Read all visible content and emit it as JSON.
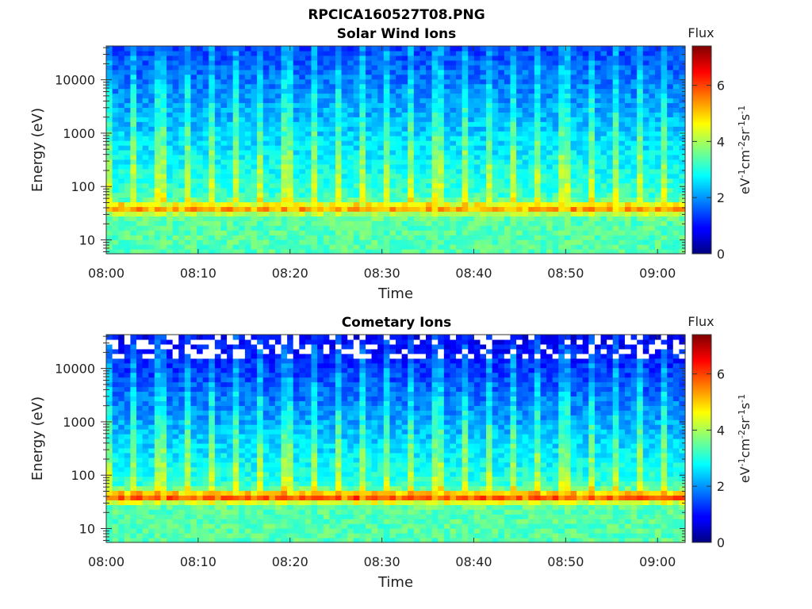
{
  "figure_title": "RPCICA160527T08.PNG",
  "colorbar": {
    "title": "Flux",
    "label": "eV-1cm-2sr-1s-1",
    "label_parts": [
      {
        "t": "eV",
        "sup": false
      },
      {
        "t": "-1",
        "sup": true
      },
      {
        "t": "cm",
        "sup": false
      },
      {
        "t": "-2",
        "sup": true
      },
      {
        "t": "sr",
        "sup": false
      },
      {
        "t": "-1",
        "sup": true
      },
      {
        "t": "s",
        "sup": false
      },
      {
        "t": "-1",
        "sup": true
      }
    ],
    "ticks": [
      "0",
      "2",
      "4",
      "6"
    ],
    "range": [
      0,
      7.4
    ],
    "colormap": "jet"
  },
  "chart_data": [
    {
      "type": "heatmap",
      "title": "Solar Wind Ions",
      "xlabel": "Time",
      "ylabel": "Energy (eV)",
      "x_ticks": [
        "08:00",
        "08:10",
        "08:20",
        "08:30",
        "08:40",
        "08:50",
        "09:00"
      ],
      "x_range": [
        "08:00",
        "09:03"
      ],
      "y_scale": "log",
      "y_ticks": [
        "10",
        "100",
        "1000",
        "10000"
      ],
      "y_range": [
        5.5,
        43000
      ],
      "z_range": [
        0,
        7.4
      ],
      "features": {
        "peak_energy_eV": 40,
        "peak_flux": 5.6,
        "background_flux_high_energy": 1.4,
        "spikes_every_minutes": 2.75
      }
    },
    {
      "type": "heatmap",
      "title": "Cometary Ions",
      "xlabel": "Time",
      "ylabel": "Energy (eV)",
      "x_ticks": [
        "08:00",
        "08:10",
        "08:20",
        "08:30",
        "08:40",
        "08:50",
        "09:00"
      ],
      "x_range": [
        "08:00",
        "09:03"
      ],
      "y_scale": "log",
      "y_ticks": [
        "10",
        "100",
        "1000",
        "10000"
      ],
      "y_range": [
        5.5,
        43000
      ],
      "z_range": [
        0,
        7.4
      ],
      "features": {
        "peak_energy_eV": 40,
        "peak_flux": 6.3,
        "background_flux_high_energy": 0.8,
        "spikes_every_minutes": 2.75,
        "blank_bins_above_eV": 15000
      }
    }
  ]
}
